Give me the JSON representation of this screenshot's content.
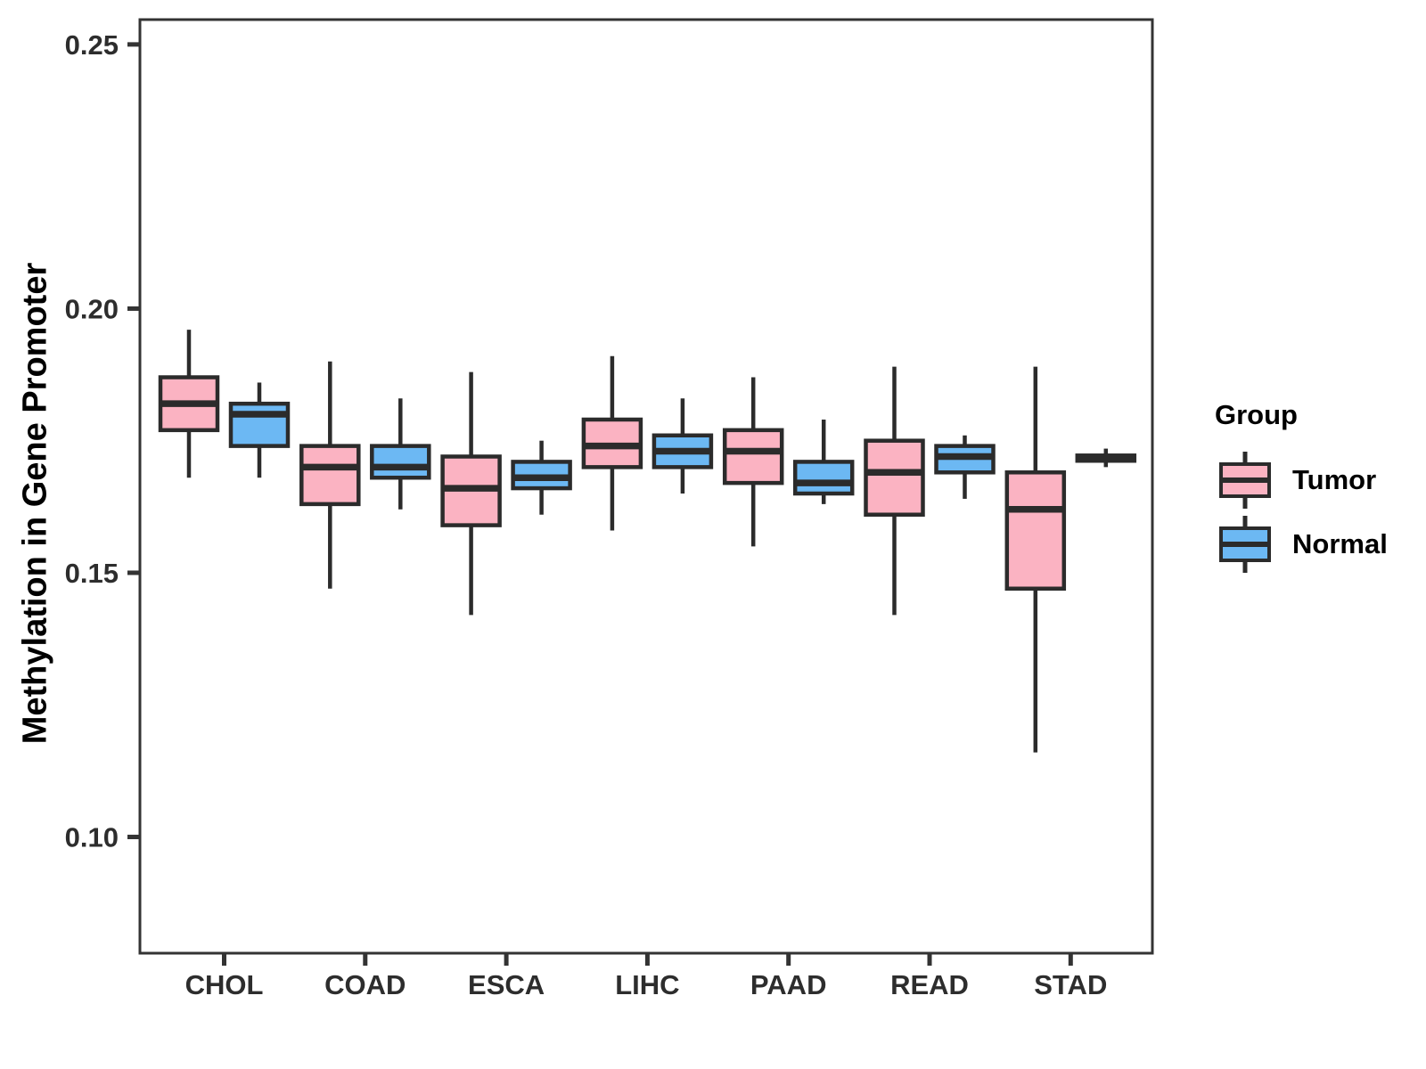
{
  "chart_data": {
    "type": "boxplot",
    "title": "",
    "xlabel": "",
    "ylabel": "Methylation in Gene Promoter",
    "categories": [
      "CHOL",
      "COAD",
      "ESCA",
      "LIHC",
      "PAAD",
      "READ",
      "STAD"
    ],
    "y_ticks": [
      0.25,
      0.2,
      0.15,
      0.1
    ],
    "y_tick_labels": [
      "0.25",
      "0.20",
      "0.15",
      "0.10"
    ],
    "ylim": [
      0.078,
      0.2547
    ],
    "grid": false,
    "legend": {
      "title": "Group",
      "position": "right",
      "entries": [
        {
          "label": "Tumor",
          "color": "#FBB3C2"
        },
        {
          "label": "Normal",
          "color": "#6CB8F3"
        }
      ]
    },
    "colors": {
      "tumor_fill": "#FBB3C2",
      "normal_fill": "#6CB8F3",
      "box_stroke": "#2b2b2b",
      "panel_border": "#333333",
      "background": "#ffffff"
    },
    "series": [
      {
        "name": "Tumor",
        "color": "#FBB3C2",
        "boxes": [
          {
            "category": "CHOL",
            "min": 0.168,
            "q1": 0.177,
            "median": 0.182,
            "q3": 0.187,
            "max": 0.196
          },
          {
            "category": "COAD",
            "min": 0.147,
            "q1": 0.163,
            "median": 0.17,
            "q3": 0.174,
            "max": 0.19
          },
          {
            "category": "ESCA",
            "min": 0.142,
            "q1": 0.159,
            "median": 0.166,
            "q3": 0.172,
            "max": 0.188
          },
          {
            "category": "LIHC",
            "min": 0.158,
            "q1": 0.17,
            "median": 0.174,
            "q3": 0.179,
            "max": 0.191
          },
          {
            "category": "PAAD",
            "min": 0.155,
            "q1": 0.167,
            "median": 0.173,
            "q3": 0.177,
            "max": 0.187
          },
          {
            "category": "READ",
            "min": 0.142,
            "q1": 0.161,
            "median": 0.169,
            "q3": 0.175,
            "max": 0.189
          },
          {
            "category": "STAD",
            "min": 0.116,
            "q1": 0.147,
            "median": 0.162,
            "q3": 0.169,
            "max": 0.189
          }
        ]
      },
      {
        "name": "Normal",
        "color": "#6CB8F3",
        "boxes": [
          {
            "category": "CHOL",
            "min": 0.168,
            "q1": 0.174,
            "median": 0.18,
            "q3": 0.182,
            "max": 0.186
          },
          {
            "category": "COAD",
            "min": 0.162,
            "q1": 0.168,
            "median": 0.17,
            "q3": 0.174,
            "max": 0.183
          },
          {
            "category": "ESCA",
            "min": 0.161,
            "q1": 0.166,
            "median": 0.168,
            "q3": 0.171,
            "max": 0.175
          },
          {
            "category": "LIHC",
            "min": 0.165,
            "q1": 0.17,
            "median": 0.173,
            "q3": 0.176,
            "max": 0.183
          },
          {
            "category": "PAAD",
            "min": 0.163,
            "q1": 0.165,
            "median": 0.167,
            "q3": 0.171,
            "max": 0.179
          },
          {
            "category": "READ",
            "min": 0.164,
            "q1": 0.169,
            "median": 0.172,
            "q3": 0.174,
            "max": 0.176
          },
          {
            "category": "STAD",
            "min": 0.17,
            "q1": 0.1712,
            "median": 0.1717,
            "q3": 0.1722,
            "max": 0.1735
          }
        ]
      }
    ]
  }
}
